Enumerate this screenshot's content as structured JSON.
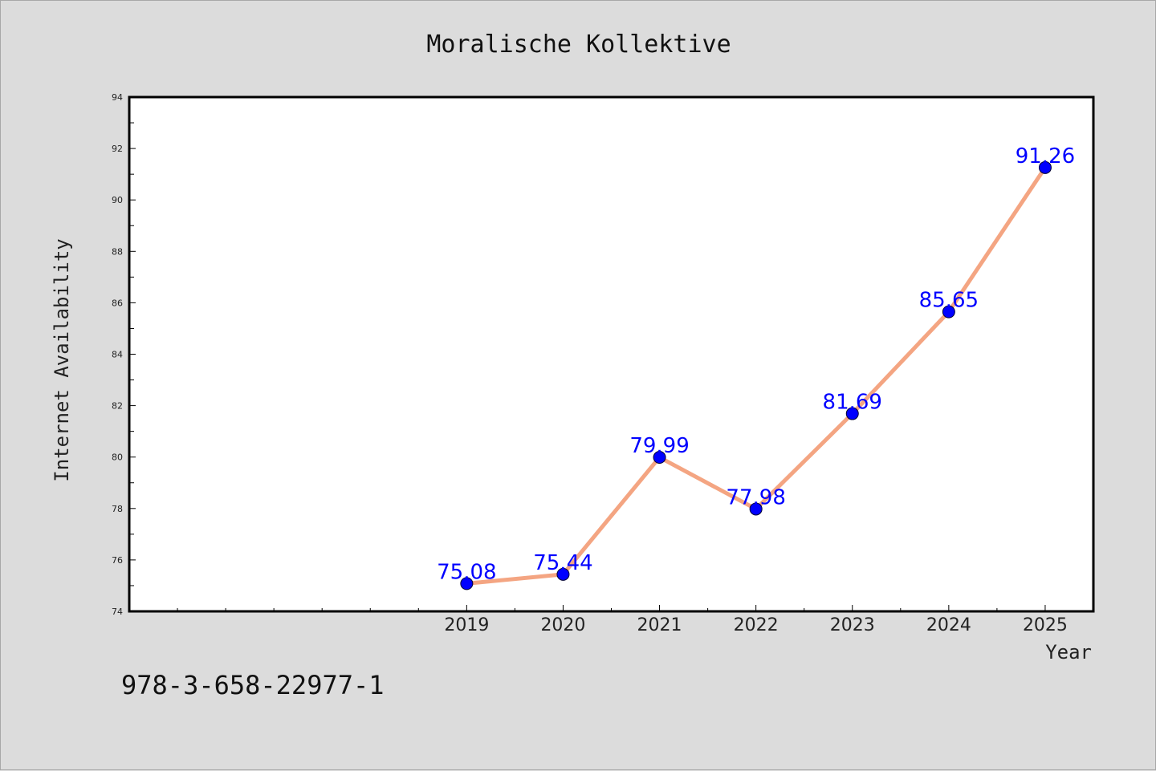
{
  "chart_data": {
    "type": "line",
    "title": "Moralische Kollektive",
    "xlabel": "Year",
    "ylabel": "Internet Availability",
    "categories": [
      "2019",
      "2020",
      "2021",
      "2022",
      "2023",
      "2024",
      "2025"
    ],
    "values": [
      75.08,
      75.44,
      79.99,
      77.98,
      81.69,
      85.65,
      91.26
    ],
    "data_labels": [
      "75.08",
      "75.44",
      "79.99",
      "77.98",
      "81.69",
      "85.65",
      "91.26"
    ],
    "yticks": [
      "74",
      "76",
      "78",
      "80",
      "82",
      "84",
      "86",
      "88",
      "90",
      "92",
      "94"
    ],
    "ylim": [
      74,
      94
    ],
    "xlim": [
      2015.5,
      2025.5
    ],
    "grid": false,
    "line_color": "#f4a582",
    "marker_color": "#0000ff",
    "label_color": "#0000ff"
  },
  "footer": {
    "isbn": "978-3-658-22977-1"
  }
}
